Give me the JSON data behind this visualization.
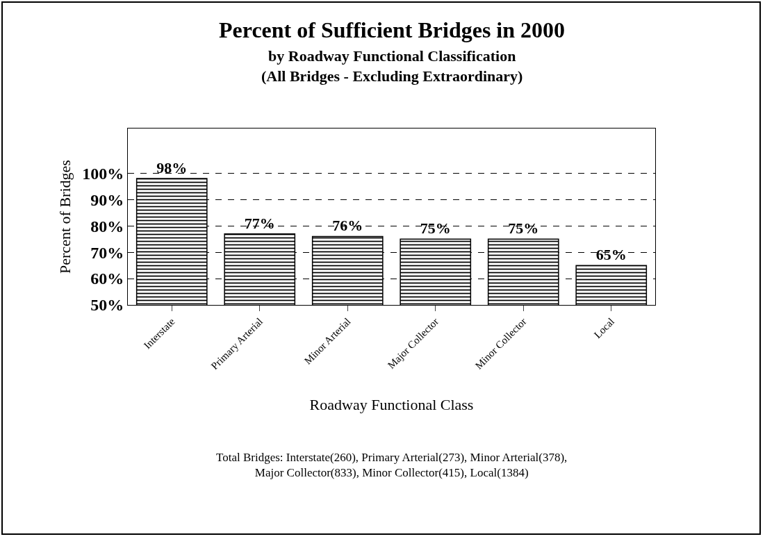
{
  "chart_data": {
    "type": "bar",
    "title": "Percent of Sufficient Bridges in 2000",
    "subtitle": "by Roadway Functional Classification\n(All Bridges - Excluding Extraordinary)",
    "xlabel": "Roadway Functional Class",
    "ylabel": "Percent of Bridges",
    "categories": [
      "Interstate",
      "Primary Arterial",
      "Minor Arterial",
      "Major Collector",
      "Minor Collector",
      "Local"
    ],
    "values": [
      98,
      77,
      76,
      75,
      75,
      65
    ],
    "value_labels": [
      "98%",
      "77%",
      "76%",
      "75%",
      "75%",
      "65%"
    ],
    "color": "#000000",
    "ylim": [
      50,
      117
    ],
    "yticks": [
      {
        "value": 50,
        "label": "50%"
      },
      {
        "value": 60,
        "label": "60%"
      },
      {
        "value": 70,
        "label": "70%"
      },
      {
        "value": 80,
        "label": "80%"
      },
      {
        "value": 90,
        "label": "90%"
      },
      {
        "value": 100,
        "label": "100%"
      }
    ],
    "grid": "y",
    "annotations": [
      "Total Bridges: Interstate(260), Primary Arterial(273), Minor Arterial(378),\nMajor Collector(833), Minor Collector(415), Local(1384)"
    ]
  }
}
